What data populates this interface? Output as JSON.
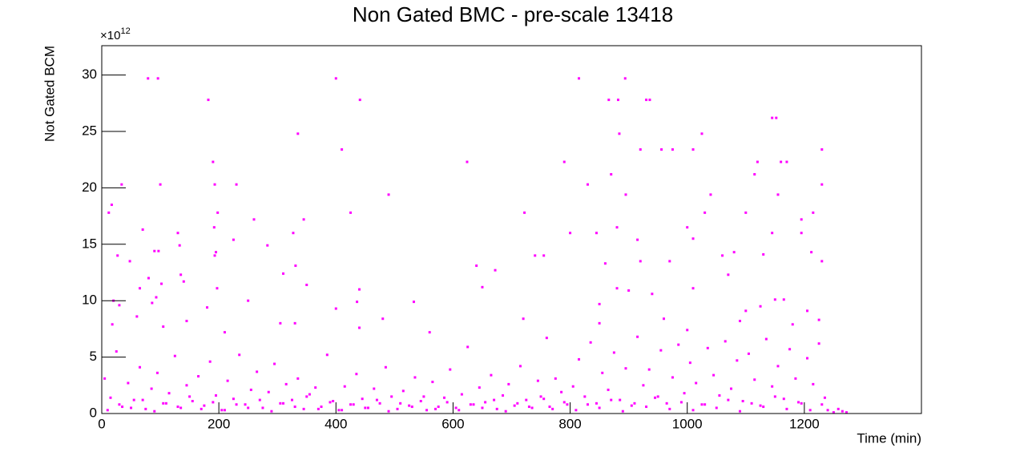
{
  "chart_data": {
    "type": "scatter",
    "title": "Non Gated BMC - pre-scale 13418",
    "x_label": "Time (min)",
    "y_label": "Not Gated BCM",
    "y_scale_base": "×10",
    "y_scale_exponent": "12",
    "color": "#ff00ff",
    "xlim": [
      0,
      1400
    ],
    "ylim": [
      0,
      32.6
    ],
    "xticks": [
      0,
      200,
      400,
      600,
      800,
      1000,
      1200
    ],
    "yticks": [
      0,
      5,
      10,
      15,
      20,
      25,
      30
    ],
    "x": [
      79,
      96,
      400,
      815,
      894,
      182,
      441,
      866,
      882,
      930,
      936,
      1145,
      1152,
      335,
      410,
      884,
      920,
      956,
      975,
      1010,
      1025,
      1230,
      190,
      624,
      790,
      1120,
      1160,
      1170,
      1230,
      34,
      100,
      193,
      230,
      490,
      830,
      895,
      1040,
      1155,
      1115,
      870,
      17,
      198,
      260,
      425,
      722,
      880,
      1000,
      1030,
      1100,
      1215,
      1195,
      345,
      12,
      70,
      130,
      192,
      225,
      283,
      327,
      800,
      845,
      915,
      1010,
      1145,
      1195,
      27,
      90,
      97,
      133,
      193,
      195,
      740,
      755,
      860,
      920,
      970,
      1060,
      1080,
      1130,
      1212,
      1230,
      48,
      65,
      80,
      135,
      140,
      102,
      197,
      310,
      331,
      350,
      440,
      650,
      672,
      640,
      880,
      900,
      1010,
      1070,
      1150,
      1165,
      20,
      30,
      86,
      93,
      180,
      250,
      400,
      436,
      533,
      850,
      940,
      1100,
      1125,
      1205,
      18,
      60,
      105,
      145,
      210,
      305,
      330,
      440,
      480,
      560,
      720,
      760,
      850,
      960,
      1000,
      1090,
      1180,
      1225,
      5,
      15,
      25,
      35,
      45,
      55,
      65,
      75,
      85,
      95,
      105,
      115,
      125,
      135,
      145,
      155,
      165,
      175,
      185,
      195,
      205,
      215,
      225,
      235,
      245,
      255,
      265,
      275,
      285,
      295,
      305,
      315,
      325,
      335,
      345,
      355,
      365,
      375,
      385,
      395,
      405,
      415,
      425,
      435,
      445,
      455,
      465,
      475,
      485,
      495,
      505,
      515,
      525,
      535,
      545,
      555,
      565,
      575,
      585,
      595,
      605,
      615,
      625,
      635,
      645,
      655,
      665,
      675,
      685,
      695,
      705,
      715,
      725,
      735,
      745,
      755,
      765,
      775,
      785,
      795,
      805,
      815,
      825,
      835,
      845,
      855,
      865,
      875,
      885,
      895,
      905,
      915,
      925,
      935,
      945,
      955,
      965,
      975,
      985,
      995,
      1005,
      1015,
      1025,
      1035,
      1045,
      1055,
      1065,
      1075,
      1085,
      1095,
      1105,
      1115,
      1125,
      1135,
      1145,
      1155,
      1165,
      1175,
      1185,
      1195,
      1205,
      1215,
      1225,
      1235,
      10,
      30,
      50,
      70,
      90,
      110,
      130,
      150,
      170,
      190,
      210,
      230,
      250,
      270,
      290,
      310,
      330,
      350,
      370,
      390,
      410,
      430,
      450,
      470,
      490,
      510,
      530,
      550,
      570,
      590,
      610,
      630,
      650,
      670,
      690,
      710,
      730,
      750,
      770,
      790,
      810,
      830,
      850,
      870,
      890,
      910,
      930,
      950,
      970,
      990,
      1010,
      1030,
      1050,
      1070,
      1090,
      1110,
      1130,
      1150,
      1170,
      1190,
      1210,
      1230,
      1240,
      1250,
      1258,
      1265,
      1272
    ],
    "values": [
      29.7,
      29.7,
      29.7,
      29.7,
      29.7,
      27.8,
      27.8,
      27.8,
      27.8,
      27.8,
      27.8,
      26.2,
      26.2,
      24.8,
      23.4,
      24.8,
      23.4,
      23.4,
      23.4,
      23.4,
      24.8,
      23.4,
      22.3,
      22.3,
      22.3,
      22.3,
      22.3,
      22.3,
      20.3,
      20.3,
      20.3,
      20.3,
      20.3,
      19.4,
      20.3,
      19.4,
      19.4,
      19.4,
      21.2,
      21.2,
      18.5,
      17.8,
      17.2,
      17.8,
      17.8,
      16.5,
      16.5,
      17.8,
      17.8,
      17.8,
      17.2,
      17.2,
      17.8,
      16.3,
      16,
      16.5,
      15.4,
      14.9,
      16,
      16,
      16,
      15.4,
      15.5,
      16,
      16,
      14,
      14.4,
      14.4,
      14.9,
      14,
      14.3,
      14,
      14,
      13.3,
      13.5,
      13.5,
      14,
      14.3,
      14.1,
      14.3,
      13.5,
      13.5,
      11.1,
      12,
      12.3,
      11.7,
      11.5,
      11.1,
      12.4,
      13.1,
      11.4,
      11,
      11.2,
      12.7,
      13.1,
      11.1,
      10.9,
      11.1,
      12.3,
      10.1,
      10.1,
      10,
      9.6,
      9.8,
      10.3,
      9.4,
      10,
      9.3,
      9.9,
      9.9,
      9.7,
      10.6,
      9.1,
      9.5,
      9.1,
      7.9,
      8.6,
      7.7,
      8.2,
      7.2,
      8,
      8,
      7.6,
      8.4,
      7.2,
      8.4,
      6.7,
      8,
      8.4,
      7.4,
      8.2,
      7.9,
      8.3,
      3.1,
      1.4,
      5.5,
      0.6,
      2.7,
      1.2,
      4.1,
      0.4,
      2.2,
      3.6,
      0.9,
      1.8,
      5.1,
      0.5,
      2.5,
      1.1,
      3.3,
      0.7,
      4.6,
      1.6,
      0.3,
      2.9,
      1.3,
      5.2,
      0.8,
      2.1,
      3.7,
      0.5,
      1.9,
      4.4,
      0.9,
      2.6,
      1.2,
      3.1,
      0.4,
      1.7,
      2.3,
      0.6,
      5.2,
      1.1,
      0.3,
      2.4,
      0.8,
      3.5,
      1.3,
      0.5,
      2.2,
      0.9,
      4.1,
      1.5,
      0.4,
      2.0,
      0.7,
      3.2,
      1.1,
      0.3,
      2.8,
      0.6,
      1.4,
      3.9,
      0.5,
      1.7,
      5.9,
      0.8,
      2.3,
      1.0,
      3.4,
      0.4,
      1.6,
      2.6,
      0.7,
      4.2,
      1.2,
      0.5,
      2.9,
      1.3,
      0.6,
      3.1,
      1.9,
      0.8,
      2.4,
      4.8,
      1.5,
      6.3,
      0.9,
      3.6,
      2.1,
      5.4,
      1.2,
      4.0,
      0.7,
      6.8,
      2.5,
      3.9,
      1.4,
      5.6,
      0.9,
      3.2,
      6.1,
      1.8,
      4.5,
      2.7,
      0.8,
      5.8,
      3.4,
      1.6,
      6.4,
      2.2,
      4.7,
      1.1,
      5.3,
      3.0,
      0.7,
      6.6,
      2.4,
      4.2,
      1.3,
      5.7,
      3.1,
      0.9,
      4.9,
      2.6,
      6.2,
      1.4,
      0.3,
      0.8,
      0.5,
      1.2,
      0.2,
      0.9,
      0.6,
      1.5,
      0.4,
      1.0,
      0.3,
      0.8,
      0.5,
      1.2,
      0.2,
      0.9,
      0.6,
      1.5,
      0.4,
      1.0,
      0.3,
      0.8,
      0.5,
      1.2,
      0.2,
      0.9,
      0.6,
      1.5,
      0.4,
      1.0,
      0.3,
      0.8,
      0.5,
      1.2,
      0.2,
      0.9,
      0.6,
      1.5,
      0.4,
      1.0,
      0.3,
      0.8,
      0.5,
      1.2,
      0.2,
      0.9,
      0.6,
      1.5,
      0.4,
      1.0,
      0.3,
      0.8,
      0.5,
      1.2,
      0.2,
      0.9,
      0.6,
      1.5,
      0.4,
      1.0,
      0.3,
      0.8,
      0.3,
      0.1,
      0.4,
      0.2,
      0.1
    ]
  }
}
